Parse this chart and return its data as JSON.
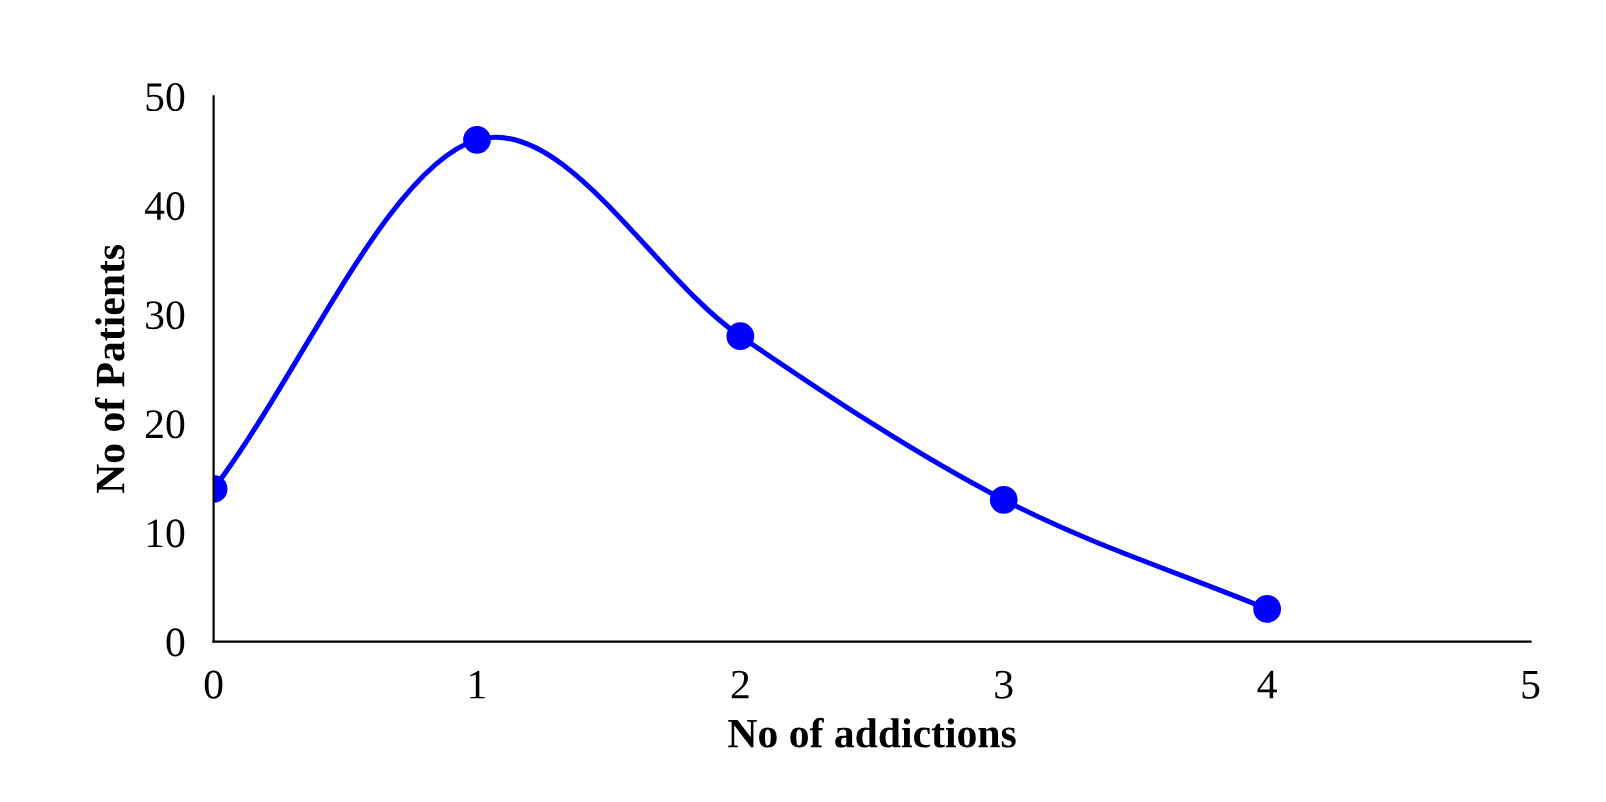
{
  "chart_data": {
    "type": "line",
    "xlabel": "No of addictions",
    "ylabel": "No of Patients",
    "x": [
      0,
      1,
      2,
      3,
      4
    ],
    "series": [
      {
        "color": "#0000ff",
        "values": [
          14,
          46,
          28,
          13,
          3
        ]
      }
    ],
    "xlim": [
      0,
      5
    ],
    "xticks": [
      0,
      1,
      2,
      3,
      4,
      5
    ],
    "ylim": [
      0,
      50
    ],
    "yticks": [
      0,
      10,
      20,
      30,
      40,
      50
    ],
    "marker": "circle",
    "line_style": "solid",
    "grid": false,
    "legend": false
  }
}
